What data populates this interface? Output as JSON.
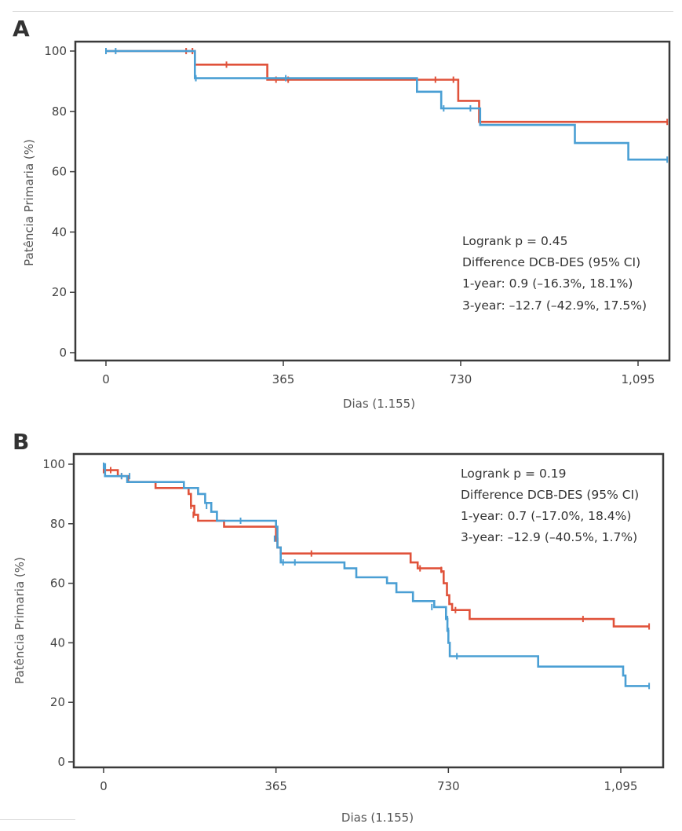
{
  "chart_data": [
    {
      "panel": "A",
      "type": "line",
      "step": true,
      "xlabel": "Dias (1.155)",
      "ylabel": "Patência Primaria (%)",
      "xticks": [
        0,
        365,
        730,
        1095
      ],
      "xtick_labels": [
        "0",
        "365",
        "730",
        "1,095"
      ],
      "yticks": [
        0,
        20,
        40,
        60,
        80,
        100
      ],
      "xlim": [
        -60,
        1155
      ],
      "ylim": [
        -4,
        106
      ],
      "grid": false,
      "colors": {
        "red": "#e0523a",
        "blue": "#4a9fd4"
      },
      "annotations": [
        "Logrank p = 0.45",
        "Difference DCB-DES (95% CI)",
        "1-year: 0.9 (–16.3%, 18.1%)",
        "3-year: –12.7 (–42.9%, 17.5%)"
      ],
      "series": [
        {
          "color": "#e0523a",
          "steps": [
            [
              0,
              100
            ],
            [
              183,
              95.5
            ],
            [
              332,
              90.5
            ],
            [
              725,
              83.5
            ],
            [
              768,
              76.5
            ],
            [
              1155,
              76.5
            ]
          ],
          "censors": [
            [
              165,
              100
            ],
            [
              178,
              100
            ],
            [
              248,
              95.5
            ],
            [
              350,
              90.5
            ],
            [
              375,
              90.5
            ],
            [
              678,
              90.5
            ],
            [
              715,
              90.5
            ],
            [
              1155,
              76.5
            ]
          ]
        },
        {
          "color": "#4a9fd4",
          "steps": [
            [
              0,
              100
            ],
            [
              183,
              91
            ],
            [
              640,
              86.5
            ],
            [
              690,
              81
            ],
            [
              770,
              75.5
            ],
            [
              965,
              69.5
            ],
            [
              1075,
              64
            ],
            [
              1155,
              64
            ]
          ],
          "censors": [
            [
              0,
              100
            ],
            [
              20,
              100
            ],
            [
              185,
              91
            ],
            [
              370,
              91
            ],
            [
              695,
              81
            ],
            [
              750,
              81
            ],
            [
              1155,
              64
            ]
          ]
        }
      ]
    },
    {
      "panel": "B",
      "type": "line",
      "step": true,
      "xlabel": "Dias (1.155)",
      "ylabel": "Patência Primaria (%)",
      "xticks": [
        0,
        365,
        730,
        1095
      ],
      "xtick_labels": [
        "0",
        "365",
        "730",
        "1,095"
      ],
      "yticks": [
        0,
        20,
        40,
        60,
        80,
        100
      ],
      "xlim": [
        -60,
        1155
      ],
      "ylim": [
        -4,
        106
      ],
      "grid": false,
      "colors": {
        "red": "#e0523a",
        "blue": "#4a9fd4"
      },
      "annotations": [
        "Logrank p = 0.19",
        "Difference DCB-DES (95% CI)",
        "1-year: 0.7 (–17.0%, 18.4%)",
        "3-year: –12.9 (–40.5%, 1.7%)"
      ],
      "series": [
        {
          "color": "#e0523a",
          "steps": [
            [
              0,
              98
            ],
            [
              30,
              96
            ],
            [
              52,
              94
            ],
            [
              110,
              92
            ],
            [
              180,
              90
            ],
            [
              185,
              86
            ],
            [
              192,
              83
            ],
            [
              200,
              81
            ],
            [
              255,
              79
            ],
            [
              365,
              75
            ],
            [
              368,
              72
            ],
            [
              375,
              70
            ],
            [
              650,
              67
            ],
            [
              665,
              65
            ],
            [
              715,
              64
            ],
            [
              720,
              60
            ],
            [
              727,
              56
            ],
            [
              732,
              53
            ],
            [
              738,
              51
            ],
            [
              775,
              48
            ],
            [
              1080,
              45.5
            ],
            [
              1155,
              45.5
            ]
          ],
          "censors": [
            [
              0,
              98
            ],
            [
              15,
              98
            ],
            [
              38,
              96
            ],
            [
              185,
              86
            ],
            [
              190,
              83
            ],
            [
              365,
              75
            ],
            [
              440,
              70
            ],
            [
              670,
              65
            ],
            [
              715,
              64.5
            ],
            [
              745,
              51
            ],
            [
              1015,
              48
            ],
            [
              1155,
              45.5
            ]
          ]
        },
        {
          "color": "#4a9fd4",
          "steps": [
            [
              0,
              100
            ],
            [
              3,
              96
            ],
            [
              50,
              94
            ],
            [
              170,
              92
            ],
            [
              200,
              90
            ],
            [
              215,
              87
            ],
            [
              228,
              84
            ],
            [
              240,
              81
            ],
            [
              365,
              79
            ],
            [
              368,
              72
            ],
            [
              375,
              67
            ],
            [
              510,
              65
            ],
            [
              535,
              62
            ],
            [
              600,
              60
            ],
            [
              620,
              57
            ],
            [
              655,
              54
            ],
            [
              700,
              52
            ],
            [
              725,
              48
            ],
            [
              728,
              44
            ],
            [
              730,
              40
            ],
            [
              733,
              35.5
            ],
            [
              920,
              32
            ],
            [
              1100,
              29
            ],
            [
              1105,
              25.5
            ],
            [
              1155,
              25.5
            ]
          ],
          "censors": [
            [
              0,
              99.5
            ],
            [
              38,
              96
            ],
            [
              55,
              96
            ],
            [
              218,
              86
            ],
            [
              290,
              81
            ],
            [
              362,
              75
            ],
            [
              380,
              67
            ],
            [
              405,
              67
            ],
            [
              695,
              52
            ],
            [
              728,
              48
            ],
            [
              730,
              44
            ],
            [
              748,
              35.5
            ],
            [
              1155,
              25.5
            ]
          ]
        }
      ]
    }
  ]
}
